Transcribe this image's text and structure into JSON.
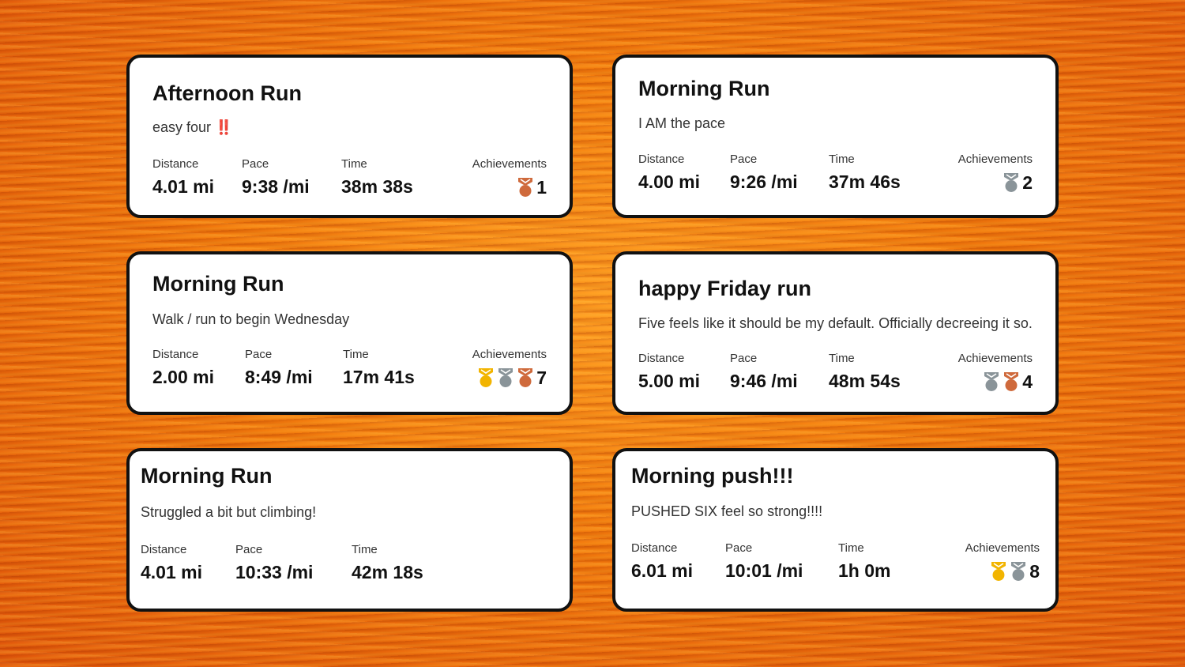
{
  "colors": {
    "card_bg": "#ffffff",
    "card_border": "#111111",
    "medal_gold": "#f2b400",
    "medal_silver": "#8a9499",
    "medal_bronze": "#cf6a3c",
    "emoji_red": "#e01010"
  },
  "labels": {
    "distance": "Distance",
    "pace": "Pace",
    "time": "Time",
    "achievements": "Achievements"
  },
  "activities": [
    {
      "title": "Afternoon Run",
      "description": "easy four",
      "emoji": "‼️",
      "distance": "4.01 mi",
      "pace": "9:38 /mi",
      "time": "38m 38s",
      "achievements": {
        "medals": [
          "bronze-medal-icon"
        ],
        "count": "1"
      }
    },
    {
      "title": "Morning Run",
      "description": "I AM the pace",
      "distance": "4.00 mi",
      "pace": "9:26 /mi",
      "time": "37m 46s",
      "achievements": {
        "medals": [
          "silver-medal-icon"
        ],
        "count": "2"
      }
    },
    {
      "title": "Morning Run",
      "description": "Walk / run to begin Wednesday",
      "distance": "2.00 mi",
      "pace": "8:49 /mi",
      "time": "17m 41s",
      "achievements": {
        "medals": [
          "gold-medal-icon",
          "silver-medal-icon",
          "bronze-medal-icon"
        ],
        "count": "7"
      }
    },
    {
      "title": "happy Friday run",
      "description": "Five feels like it should be my default. Officially decreeing it so.",
      "distance": "5.00 mi",
      "pace": "9:46 /mi",
      "time": "48m 54s",
      "achievements": {
        "medals": [
          "silver-medal-icon",
          "bronze-medal-icon"
        ],
        "count": "4"
      }
    },
    {
      "title": "Morning Run",
      "description": "Struggled a bit but climbing!",
      "distance": "4.01 mi",
      "pace": "10:33 /mi",
      "time": "42m 18s"
    },
    {
      "title": "Morning push!!!",
      "description": "PUSHED SIX feel so strong!!!!",
      "distance": "6.01 mi",
      "pace": "10:01 /mi",
      "time": "1h 0m",
      "achievements": {
        "medals": [
          "gold-medal-icon",
          "silver-medal-icon"
        ],
        "count": "8"
      }
    }
  ]
}
